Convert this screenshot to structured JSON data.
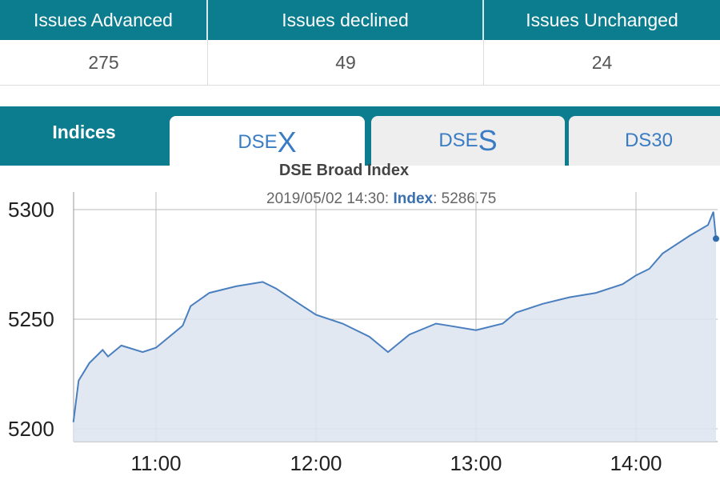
{
  "summary": {
    "headers": [
      "Issues Advanced",
      "Issues declined",
      "Issues Unchanged"
    ],
    "values": [
      "275",
      "49",
      "24"
    ]
  },
  "tabs": {
    "section_label": "Indices",
    "items": [
      {
        "prefix": "DSE",
        "suffix": "X"
      },
      {
        "prefix": "DSE",
        "suffix": "S"
      },
      {
        "prefix": "DS30",
        "suffix": ""
      }
    ],
    "active": 0
  },
  "tooltip": {
    "time": "2019/05/02 14:30",
    "key": "Index",
    "value": "5286.75"
  },
  "colors": {
    "header": "#0b7d8f",
    "line": "#4a7fbf",
    "fill": "#dfe6f0"
  },
  "chart_data": {
    "type": "area",
    "title": "DSE Broad Index",
    "xlabel": "",
    "ylabel": "",
    "ylim": [
      5195,
      5308
    ],
    "yticks": [
      5200,
      5250,
      5300
    ],
    "xticks": [
      "11:00",
      "12:00",
      "13:00",
      "14:00"
    ],
    "grid": true,
    "series": [
      {
        "x": [
          "10:29",
          "10:31",
          "10:35",
          "10:40",
          "10:42",
          "10:47",
          "10:55",
          "11:00",
          "11:05",
          "11:10",
          "11:13",
          "11:20",
          "11:30",
          "11:40",
          "11:45",
          "11:55",
          "12:00",
          "12:10",
          "12:20",
          "12:27",
          "12:35",
          "12:45",
          "12:50",
          "13:00",
          "13:10",
          "13:15",
          "13:25",
          "13:35",
          "13:45",
          "13:55",
          "14:00",
          "14:05",
          "14:10",
          "14:20",
          "14:27",
          "14:29",
          "14:30"
        ],
        "values": [
          5203,
          5222,
          5230,
          5236,
          5233,
          5238,
          5235,
          5237,
          5242,
          5247,
          5256,
          5262,
          5265,
          5267,
          5264,
          5256,
          5252,
          5248,
          5242,
          5235,
          5243,
          5248,
          5247,
          5245,
          5248,
          5253,
          5257,
          5260,
          5262,
          5266,
          5270,
          5273,
          5280,
          5288,
          5293,
          5299,
          5286.75
        ]
      }
    ]
  }
}
